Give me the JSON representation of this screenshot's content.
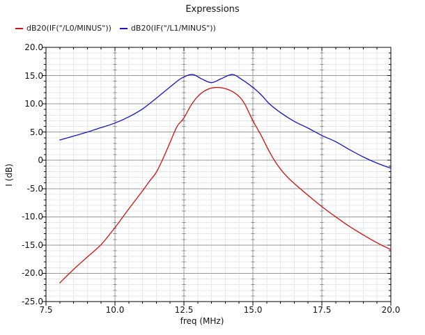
{
  "window": {
    "title": "Expressions"
  },
  "chart_data": {
    "type": "line",
    "title": "Expressions",
    "xlabel": "freq (MHz)",
    "ylabel": "I (dB)",
    "xlim": [
      7.5,
      20.0
    ],
    "ylim": [
      -25.0,
      20.0
    ],
    "grid": true,
    "legend_position": "top-left",
    "x_ticks": [
      {
        "value": 7.5,
        "label": "7.5"
      },
      {
        "value": 10.0,
        "label": "10.0"
      },
      {
        "value": 12.5,
        "label": "12.5"
      },
      {
        "value": 15.0,
        "label": "15.0"
      },
      {
        "value": 17.5,
        "label": "17.5"
      },
      {
        "value": 20.0,
        "label": "20.0"
      }
    ],
    "y_ticks": [
      {
        "value": 20,
        "label": "20.0"
      },
      {
        "value": 15,
        "label": "15.0"
      },
      {
        "value": 10,
        "label": "10.0"
      },
      {
        "value": 5,
        "label": "5.0"
      },
      {
        "value": 0,
        "label": "0"
      },
      {
        "value": -5,
        "label": "-5.0"
      },
      {
        "value": -10,
        "label": "-10.0"
      },
      {
        "value": -15,
        "label": "-15.0"
      },
      {
        "value": -20,
        "label": "-20.0"
      },
      {
        "value": -25,
        "label": "-25.0"
      }
    ],
    "minor_x_step": 0.5,
    "minor_y_step": 1,
    "series": [
      {
        "name": "dB20(IF(\"/L0/MINUS\"))",
        "color": "#cc1111",
        "points": [
          [
            8.0,
            -21.7
          ],
          [
            8.5,
            -19.3
          ],
          [
            9.0,
            -17.1
          ],
          [
            9.5,
            -14.9
          ],
          [
            10.0,
            -11.9
          ],
          [
            10.5,
            -8.6
          ],
          [
            11.0,
            -5.4
          ],
          [
            11.25,
            -3.7
          ],
          [
            11.5,
            -2.1
          ],
          [
            11.75,
            0.4
          ],
          [
            12.0,
            3.2
          ],
          [
            12.25,
            6.0
          ],
          [
            12.5,
            7.5
          ],
          [
            12.75,
            9.7
          ],
          [
            13.0,
            11.3
          ],
          [
            13.25,
            12.3
          ],
          [
            13.5,
            12.8
          ],
          [
            13.75,
            12.9
          ],
          [
            14.0,
            12.7
          ],
          [
            14.25,
            12.2
          ],
          [
            14.5,
            11.3
          ],
          [
            14.7,
            10.0
          ],
          [
            15.0,
            7.0
          ],
          [
            15.3,
            4.4
          ],
          [
            15.6,
            1.5
          ],
          [
            15.9,
            -0.9
          ],
          [
            16.2,
            -2.7
          ],
          [
            16.5,
            -4.1
          ],
          [
            17.0,
            -6.2
          ],
          [
            17.5,
            -8.2
          ],
          [
            18.0,
            -10.0
          ],
          [
            18.5,
            -11.7
          ],
          [
            19.0,
            -13.2
          ],
          [
            19.5,
            -14.6
          ],
          [
            20.0,
            -15.8
          ]
        ]
      },
      {
        "name": "dB20(IF(\"/L1/MINUS\"))",
        "color": "#1414c0",
        "points": [
          [
            8.0,
            3.6
          ],
          [
            8.5,
            4.3
          ],
          [
            9.0,
            5.0
          ],
          [
            9.5,
            5.8
          ],
          [
            10.0,
            6.6
          ],
          [
            10.5,
            7.7
          ],
          [
            11.0,
            9.1
          ],
          [
            11.5,
            11.0
          ],
          [
            12.0,
            13.0
          ],
          [
            12.4,
            14.5
          ],
          [
            12.8,
            15.2
          ],
          [
            13.15,
            14.4
          ],
          [
            13.5,
            13.75
          ],
          [
            13.85,
            14.45
          ],
          [
            14.25,
            15.2
          ],
          [
            14.6,
            14.3
          ],
          [
            15.0,
            12.9
          ],
          [
            15.3,
            11.6
          ],
          [
            15.6,
            10.0
          ],
          [
            16.0,
            8.45
          ],
          [
            16.5,
            6.9
          ],
          [
            17.0,
            5.7
          ],
          [
            17.5,
            4.4
          ],
          [
            18.0,
            3.3
          ],
          [
            18.5,
            1.9
          ],
          [
            19.0,
            0.6
          ],
          [
            19.5,
            -0.5
          ],
          [
            20.0,
            -1.4
          ]
        ]
      }
    ],
    "colors": {
      "major_grid": "#999999",
      "minor_grid": "#e7e7e7",
      "cross_tick": "#8a8a8a",
      "axis": "#000000",
      "background": "#ffffff"
    }
  }
}
